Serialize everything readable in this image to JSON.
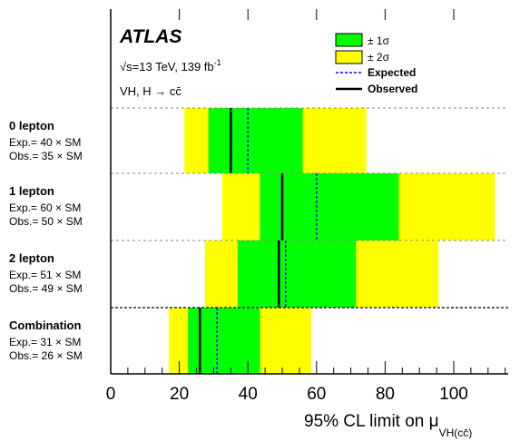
{
  "chart_data": {
    "type": "bar",
    "title": "ATLAS",
    "subtitle_energy": "√s=13 TeV, 139 fb",
    "subtitle_energy_exp": "-1",
    "subtitle_process": "VH, H → cc̄",
    "xlabel_main": "95% CL limit on μ",
    "xlabel_sub": "VH(cc̄)",
    "xlim": [
      0,
      115
    ],
    "xticks": [
      0,
      20,
      40,
      60,
      80,
      100
    ],
    "legend": {
      "placement": "top-right",
      "one_sigma": "± 1σ",
      "two_sigma": "± 2σ",
      "expected": "Expected",
      "observed": "Observed"
    },
    "colors": {
      "one_sigma": "#00ff00",
      "two_sigma": "#ffff00",
      "expected": "#0000ff",
      "observed": "#000000"
    },
    "categories": [
      {
        "label": "0 lepton",
        "exp_text": "Exp.= 40 × SM",
        "obs_text": "Obs.= 35 × SM",
        "expected": 40,
        "observed": 35,
        "band1": [
          28.5,
          56
        ],
        "band2": [
          21.5,
          74.5
        ]
      },
      {
        "label": "1 lepton",
        "exp_text": "Exp.= 60 × SM",
        "obs_text": "Obs.= 50 × SM",
        "expected": 60,
        "observed": 50,
        "band1": [
          43.5,
          84
        ],
        "band2": [
          32.5,
          112
        ]
      },
      {
        "label": "2 lepton",
        "exp_text": "Exp.= 51 × SM",
        "obs_text": "Obs.= 49 × SM",
        "expected": 51,
        "observed": 49,
        "band1": [
          37,
          71.5
        ],
        "band2": [
          27.5,
          95.5
        ]
      },
      {
        "label": "Combination",
        "exp_text": "Exp.= 31 × SM",
        "obs_text": "Obs.= 26 × SM",
        "expected": 31,
        "observed": 26,
        "band1": [
          22.5,
          43.5
        ],
        "band2": [
          17,
          58.5
        ]
      }
    ]
  }
}
